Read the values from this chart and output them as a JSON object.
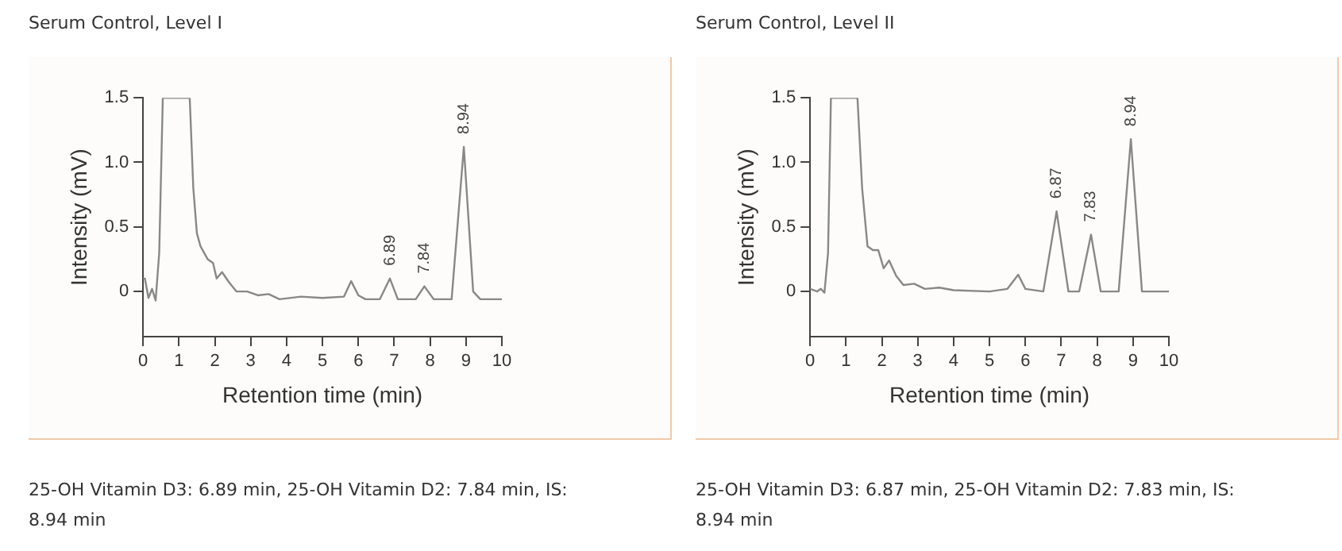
{
  "chart_data": [
    {
      "type": "line",
      "title": "Serum Control, Level I",
      "xlabel": "Retention time (min)",
      "ylabel": "Intensity (mV)",
      "xlim": [
        0,
        10
      ],
      "ylim": [
        -0.35,
        1.5
      ],
      "xticks": [
        0,
        1,
        2,
        3,
        4,
        5,
        6,
        7,
        8,
        9,
        10
      ],
      "yticks": [
        0,
        0.5,
        {
          "value": 1,
          "label": "1.0"
        },
        1.5
      ],
      "grid": false,
      "marker": "none",
      "series": [
        {
          "color": "#888888",
          "x": [
            0,
            0.05,
            0.15,
            0.25,
            0.35,
            0.45,
            0.55,
            1.3,
            1.4,
            1.5,
            1.6,
            1.8,
            1.95,
            2.05,
            2.2,
            2.4,
            2.6,
            2.9,
            3.2,
            3.5,
            3.8,
            4.4,
            5.0,
            5.6,
            5.8,
            6.0,
            6.2,
            6.6,
            6.88,
            7.1,
            7.6,
            7.84,
            8.1,
            8.6,
            8.94,
            9.2,
            9.4,
            10.0
          ],
          "values": [
            0.1,
            0.1,
            -0.05,
            0.02,
            -0.07,
            0.3,
            1.5,
            1.5,
            0.8,
            0.45,
            0.35,
            0.25,
            0.22,
            0.1,
            0.15,
            0.07,
            0.0,
            0.0,
            -0.03,
            -0.02,
            -0.06,
            -0.04,
            -0.05,
            -0.04,
            0.08,
            -0.03,
            -0.06,
            -0.06,
            0.1,
            -0.06,
            -0.06,
            0.04,
            -0.06,
            -0.06,
            1.12,
            0.0,
            -0.06,
            -0.06
          ]
        }
      ],
      "annotations": [
        {
          "text": "6.89",
          "x": 6.89,
          "y": 0.1
        },
        {
          "text": "7.84",
          "x": 7.84,
          "y": 0.04
        },
        {
          "text": "8.94",
          "x": 8.94,
          "y": 1.12
        },
        "25-OH Vitamin D3: 6.89 min, 25-OH Vitamin D2: 7.84 min, IS: 8.94 min"
      ]
    },
    {
      "type": "line",
      "title": "Serum Control, Level II",
      "xlabel": "Retention time (min)",
      "ylabel": "Intensity (mV)",
      "xlim": [
        0,
        10
      ],
      "ylim": [
        -0.35,
        1.5
      ],
      "xticks": [
        0,
        1,
        2,
        3,
        4,
        5,
        6,
        7,
        8,
        9,
        10
      ],
      "yticks": [
        0,
        0.5,
        {
          "value": 1,
          "label": "1.0"
        },
        1.5
      ],
      "grid": false,
      "marker": "none",
      "series": [
        {
          "color": "#888888",
          "x": [
            0,
            0.2,
            0.3,
            0.4,
            0.5,
            0.58,
            1.32,
            1.45,
            1.6,
            1.75,
            1.9,
            2.05,
            2.2,
            2.4,
            2.6,
            2.9,
            3.2,
            3.6,
            4.0,
            5.0,
            5.5,
            5.8,
            6.0,
            6.5,
            6.87,
            7.2,
            7.5,
            7.83,
            8.1,
            8.6,
            8.94,
            9.25,
            10.0
          ],
          "values": [
            0.02,
            0.0,
            0.02,
            -0.01,
            0.3,
            1.5,
            1.5,
            0.8,
            0.35,
            0.32,
            0.32,
            0.18,
            0.24,
            0.12,
            0.05,
            0.06,
            0.02,
            0.03,
            0.01,
            0.0,
            0.02,
            0.13,
            0.02,
            0.0,
            0.62,
            0.0,
            0.0,
            0.44,
            0.0,
            0.0,
            1.18,
            0.0,
            0.0
          ]
        }
      ],
      "annotations": [
        {
          "text": "6.87",
          "x": 6.87,
          "y": 0.62
        },
        {
          "text": "7.83",
          "x": 7.83,
          "y": 0.44
        },
        {
          "text": "8.94",
          "x": 8.94,
          "y": 1.18
        },
        "25-OH Vitamin D3: 6.87 min, 25-OH Vitamin D2: 7.83 min, IS: 8.94 min"
      ]
    }
  ]
}
